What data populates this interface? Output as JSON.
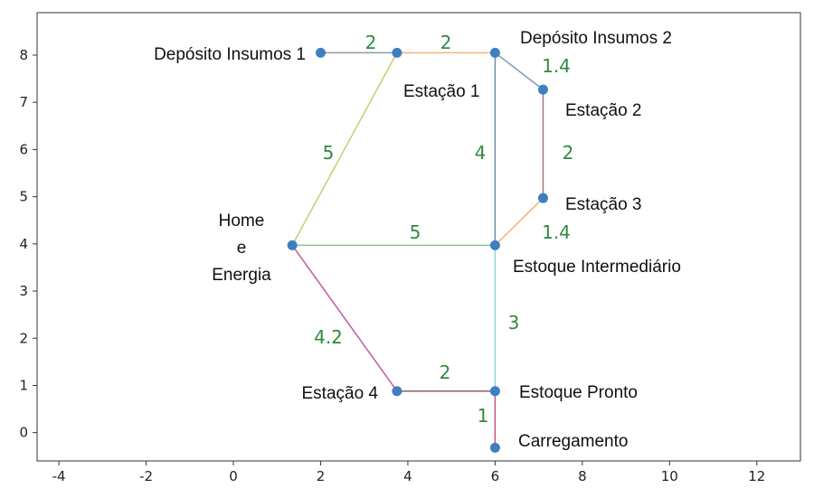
{
  "chart_data": {
    "type": "network",
    "xlim": [
      -4.5,
      13
    ],
    "ylim": [
      -0.6,
      8.9
    ],
    "xticks": [
      -4,
      -2,
      0,
      2,
      4,
      6,
      8,
      10,
      12
    ],
    "yticks": [
      0,
      1,
      2,
      3,
      4,
      5,
      6,
      7,
      8
    ],
    "weight_color": "#2e8b3e",
    "node_color": "#3f7fbf",
    "nodes": [
      {
        "id": "dep1",
        "label": "Depósito Insumos 1",
        "x": 2.0,
        "y": 8.05
      },
      {
        "id": "est1",
        "label": "Estação 1",
        "x": 3.75,
        "y": 8.05
      },
      {
        "id": "dep2",
        "label": "Depósito Insumos 2",
        "x": 6.0,
        "y": 8.05
      },
      {
        "id": "est2",
        "label": "Estação 2",
        "x": 7.1,
        "y": 7.27
      },
      {
        "id": "est3",
        "label": "Estação 3",
        "x": 7.1,
        "y": 4.97
      },
      {
        "id": "home",
        "label": "Home\ne\nEnergia",
        "x": 1.35,
        "y": 3.97
      },
      {
        "id": "ei",
        "label": "Estoque Intermediário",
        "x": 6.0,
        "y": 3.97
      },
      {
        "id": "est4",
        "label": "Estação 4",
        "x": 3.75,
        "y": 0.88
      },
      {
        "id": "ep",
        "label": "Estoque Pronto",
        "x": 6.0,
        "y": 0.88
      },
      {
        "id": "car",
        "label": "Carregamento",
        "x": 6.0,
        "y": -0.32
      }
    ],
    "edges": [
      {
        "from": "dep1",
        "to": "est1",
        "weight": "2",
        "color": "#8c9aa2"
      },
      {
        "from": "est1",
        "to": "dep2",
        "weight": "2",
        "color": "#f2b27c"
      },
      {
        "from": "dep2",
        "to": "est2",
        "weight": "1.4",
        "color": "#7f9fb8"
      },
      {
        "from": "est2",
        "to": "est3",
        "weight": "2",
        "color": "#9b7e74"
      },
      {
        "from": "est3",
        "to": "ei",
        "weight": "1.4",
        "color": "#f2b27c"
      },
      {
        "from": "dep2",
        "to": "ei",
        "weight": "4",
        "color": "#6f8daa"
      },
      {
        "from": "est1",
        "to": "home",
        "weight": "5",
        "color": "#c9cd6e"
      },
      {
        "from": "home",
        "to": "ei",
        "weight": "5",
        "color": "#8fbf8a"
      },
      {
        "from": "ei",
        "to": "ep",
        "weight": "3",
        "color": "#8fd6d6"
      },
      {
        "from": "home",
        "to": "est4",
        "weight": "4.2",
        "color": "#c25aa5"
      },
      {
        "from": "est4",
        "to": "ep",
        "weight": "2",
        "color": "#8b5e62"
      },
      {
        "from": "ep",
        "to": "car",
        "weight": "1",
        "color": "#c2567e"
      }
    ]
  }
}
